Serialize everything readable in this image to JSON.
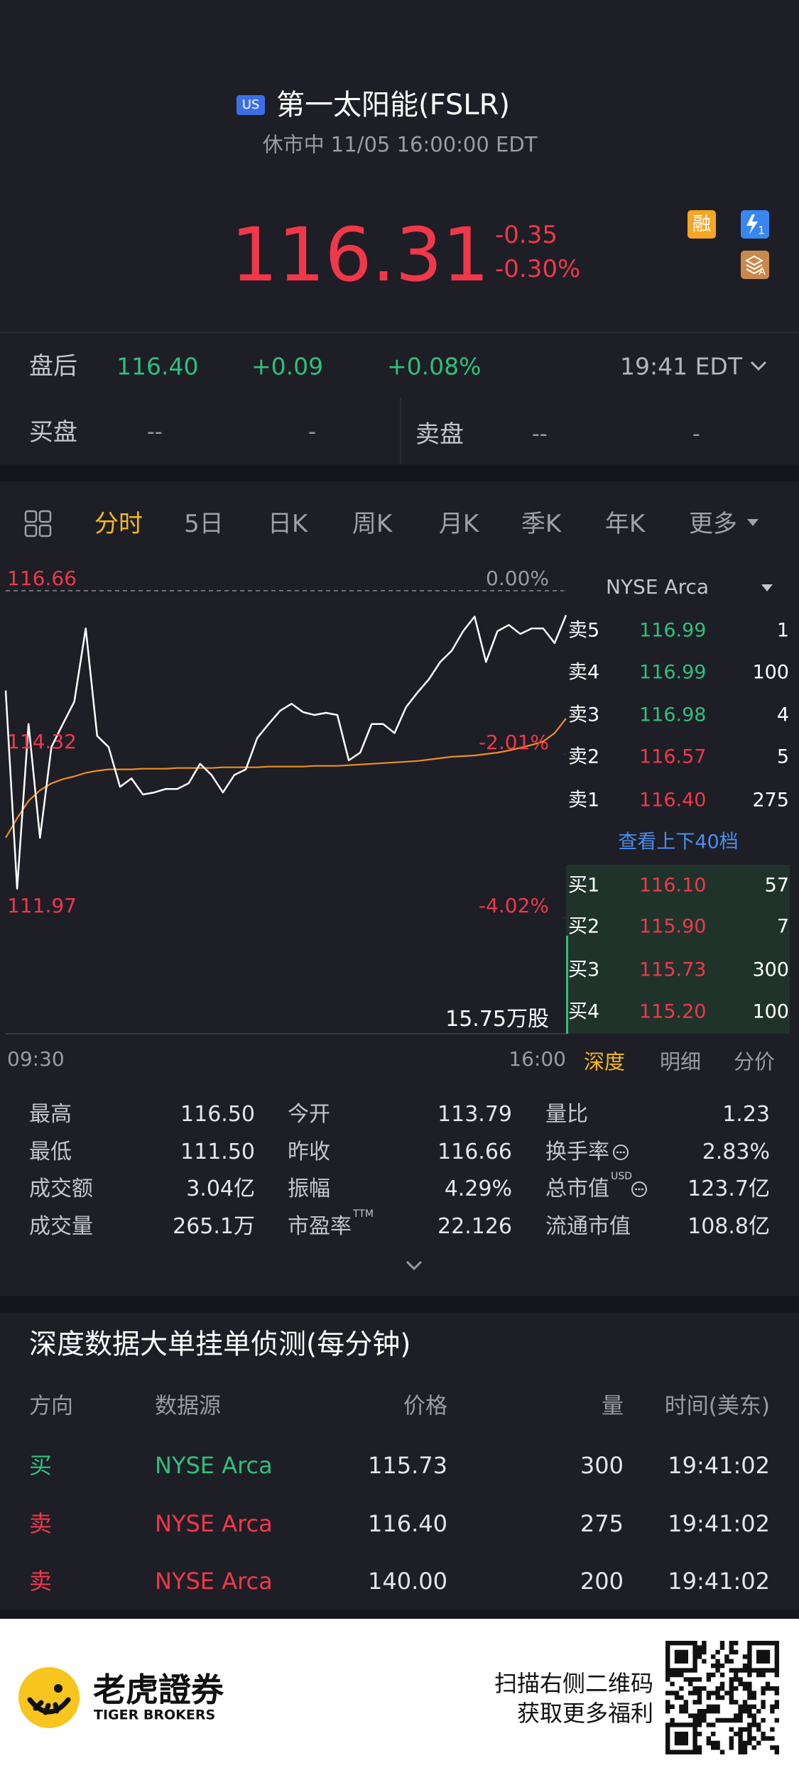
{
  "header": {
    "market": "US",
    "title": "第一太阳能(FSLR)",
    "status": "休市中 11/05 16:00:00 EDT"
  },
  "quote": {
    "price": "116.31",
    "change": "-0.35",
    "change_pct": "-0.30%",
    "badges": [
      "融",
      "1",
      "A"
    ]
  },
  "after_hours": {
    "label": "盘后",
    "price": "116.40",
    "change": "+0.09",
    "change_pct": "+0.08%",
    "time": "19:41 EDT"
  },
  "bid_ask": {
    "bid_label": "买盘",
    "bid_price": "--",
    "bid_size": "-",
    "ask_label": "卖盘",
    "ask_price": "--",
    "ask_size": "-"
  },
  "tabs": [
    "分时",
    "5日",
    "日K",
    "周K",
    "月K",
    "季K",
    "年K",
    "更多"
  ],
  "chart_data": {
    "type": "line",
    "categories": [
      "09:30",
      null,
      null,
      null,
      null,
      null,
      null,
      null,
      null,
      null,
      null,
      null,
      null,
      null,
      null,
      null,
      null,
      null,
      null,
      null,
      null,
      null,
      null,
      null,
      null,
      null,
      null,
      null,
      null,
      null,
      null,
      null,
      null,
      null,
      null,
      null,
      null,
      null,
      null,
      null,
      null,
      null,
      null,
      null,
      null,
      null,
      null,
      null,
      null,
      "16:00"
    ],
    "series": [
      {
        "color": "#ffffff",
        "values": [
          115.23,
          112.39,
          114.75,
          113.12,
          114.42,
          114.75,
          115.07,
          116.12,
          114.58,
          114.42,
          113.85,
          113.97,
          113.74,
          113.77,
          113.82,
          113.82,
          113.9,
          114.18,
          114.02,
          113.77,
          114.02,
          114.1,
          114.55,
          114.75,
          114.94,
          115.04,
          114.92,
          114.88,
          114.91,
          114.88,
          114.23,
          114.34,
          114.75,
          114.75,
          114.62,
          114.99,
          115.2,
          115.39,
          115.64,
          115.8,
          116.08,
          116.29,
          115.64,
          116.08,
          116.17,
          116.04,
          116.12,
          116.12,
          115.91,
          116.31
        ]
      },
      {
        "color": "#f0901e",
        "values": [
          113.12,
          113.4,
          113.65,
          113.8,
          113.9,
          113.96,
          114.0,
          114.05,
          114.08,
          114.1,
          114.1,
          114.1,
          114.11,
          114.11,
          114.11,
          114.12,
          114.12,
          114.12,
          114.12,
          114.13,
          114.13,
          114.13,
          114.13,
          114.14,
          114.14,
          114.14,
          114.14,
          114.15,
          114.15,
          114.15,
          114.16,
          114.17,
          114.18,
          114.19,
          114.2,
          114.21,
          114.22,
          114.24,
          114.26,
          114.28,
          114.29,
          114.3,
          114.32,
          114.34,
          114.37,
          114.41,
          114.45,
          114.5,
          114.62,
          114.83
        ]
      }
    ],
    "ylim": [
      111.97,
      116.66
    ],
    "yticks": [
      116.66,
      114.32,
      111.97
    ],
    "y2lim": [
      -4.02,
      0
    ],
    "y2ticks": [
      {
        "value": 0,
        "label": "0.00%"
      },
      {
        "value": -2.01,
        "label": "-2.01%"
      },
      {
        "value": -4.02,
        "label": "-4.02%"
      }
    ],
    "annotation": "15.75万股"
  },
  "order_book": {
    "exchange": "NYSE Arca",
    "link": "查看上下40档",
    "asks": [
      {
        "label": "卖5",
        "price": "116.99",
        "size": "1",
        "color": "#2fc07a"
      },
      {
        "label": "卖4",
        "price": "116.99",
        "size": "100",
        "color": "#2fc07a"
      },
      {
        "label": "卖3",
        "price": "116.98",
        "size": "4",
        "color": "#2fc07a"
      },
      {
        "label": "卖2",
        "price": "116.57",
        "size": "5",
        "color": "#f0384a"
      },
      {
        "label": "卖1",
        "price": "116.40",
        "size": "275",
        "color": "#f0384a"
      }
    ],
    "bids": [
      {
        "label": "买1",
        "price": "116.10",
        "size": "57",
        "color": "#f0384a"
      },
      {
        "label": "买2",
        "price": "115.90",
        "size": "7",
        "color": "#f0384a"
      },
      {
        "label": "买3",
        "price": "115.73",
        "size": "300",
        "color": "#f0384a"
      },
      {
        "label": "买4",
        "price": "115.20",
        "size": "100",
        "color": "#f0384a"
      }
    ],
    "tabs": [
      "深度",
      "明细",
      "分价"
    ]
  },
  "stats": [
    [
      {
        "label": "最高",
        "value": "116.50"
      },
      {
        "label": "今开",
        "value": "113.79"
      },
      {
        "label": "量比",
        "value": "1.23"
      }
    ],
    [
      {
        "label": "最低",
        "value": "111.50"
      },
      {
        "label": "昨收",
        "value": "116.66"
      },
      {
        "label": "换手率",
        "value": "2.83%"
      }
    ],
    [
      {
        "label": "成交额",
        "value": "3.04亿"
      },
      {
        "label": "振幅",
        "value": "4.29%"
      },
      {
        "label": "总市值",
        "sup": "USD",
        "value": "123.7亿"
      }
    ],
    [
      {
        "label": "成交量",
        "value": "265.1万"
      },
      {
        "label": "市盈率",
        "sup": "TTM",
        "value": "22.126"
      },
      {
        "label": "流通市值",
        "value": "108.8亿"
      }
    ]
  ],
  "big_orders": {
    "title": "深度数据大单挂单侦测(每分钟)",
    "columns": [
      "方向",
      "数据源",
      "价格",
      "量",
      "时间(美东)"
    ],
    "rows": [
      {
        "side": "买",
        "source": "NYSE Arca",
        "price": "115.73",
        "size": "300",
        "time": "19:41:02",
        "color": "#2fc07a"
      },
      {
        "side": "卖",
        "source": "NYSE Arca",
        "price": "116.40",
        "size": "275",
        "time": "19:41:02",
        "color": "#f0384a"
      },
      {
        "side": "卖",
        "source": "NYSE Arca",
        "price": "140.00",
        "size": "200",
        "time": "19:41:02",
        "color": "#f0384a"
      }
    ]
  },
  "footer": {
    "brand": "老虎證券",
    "brand_en": "TIGER BROKERS",
    "line1": "扫描右侧二维码",
    "line2": "获取更多福利"
  }
}
